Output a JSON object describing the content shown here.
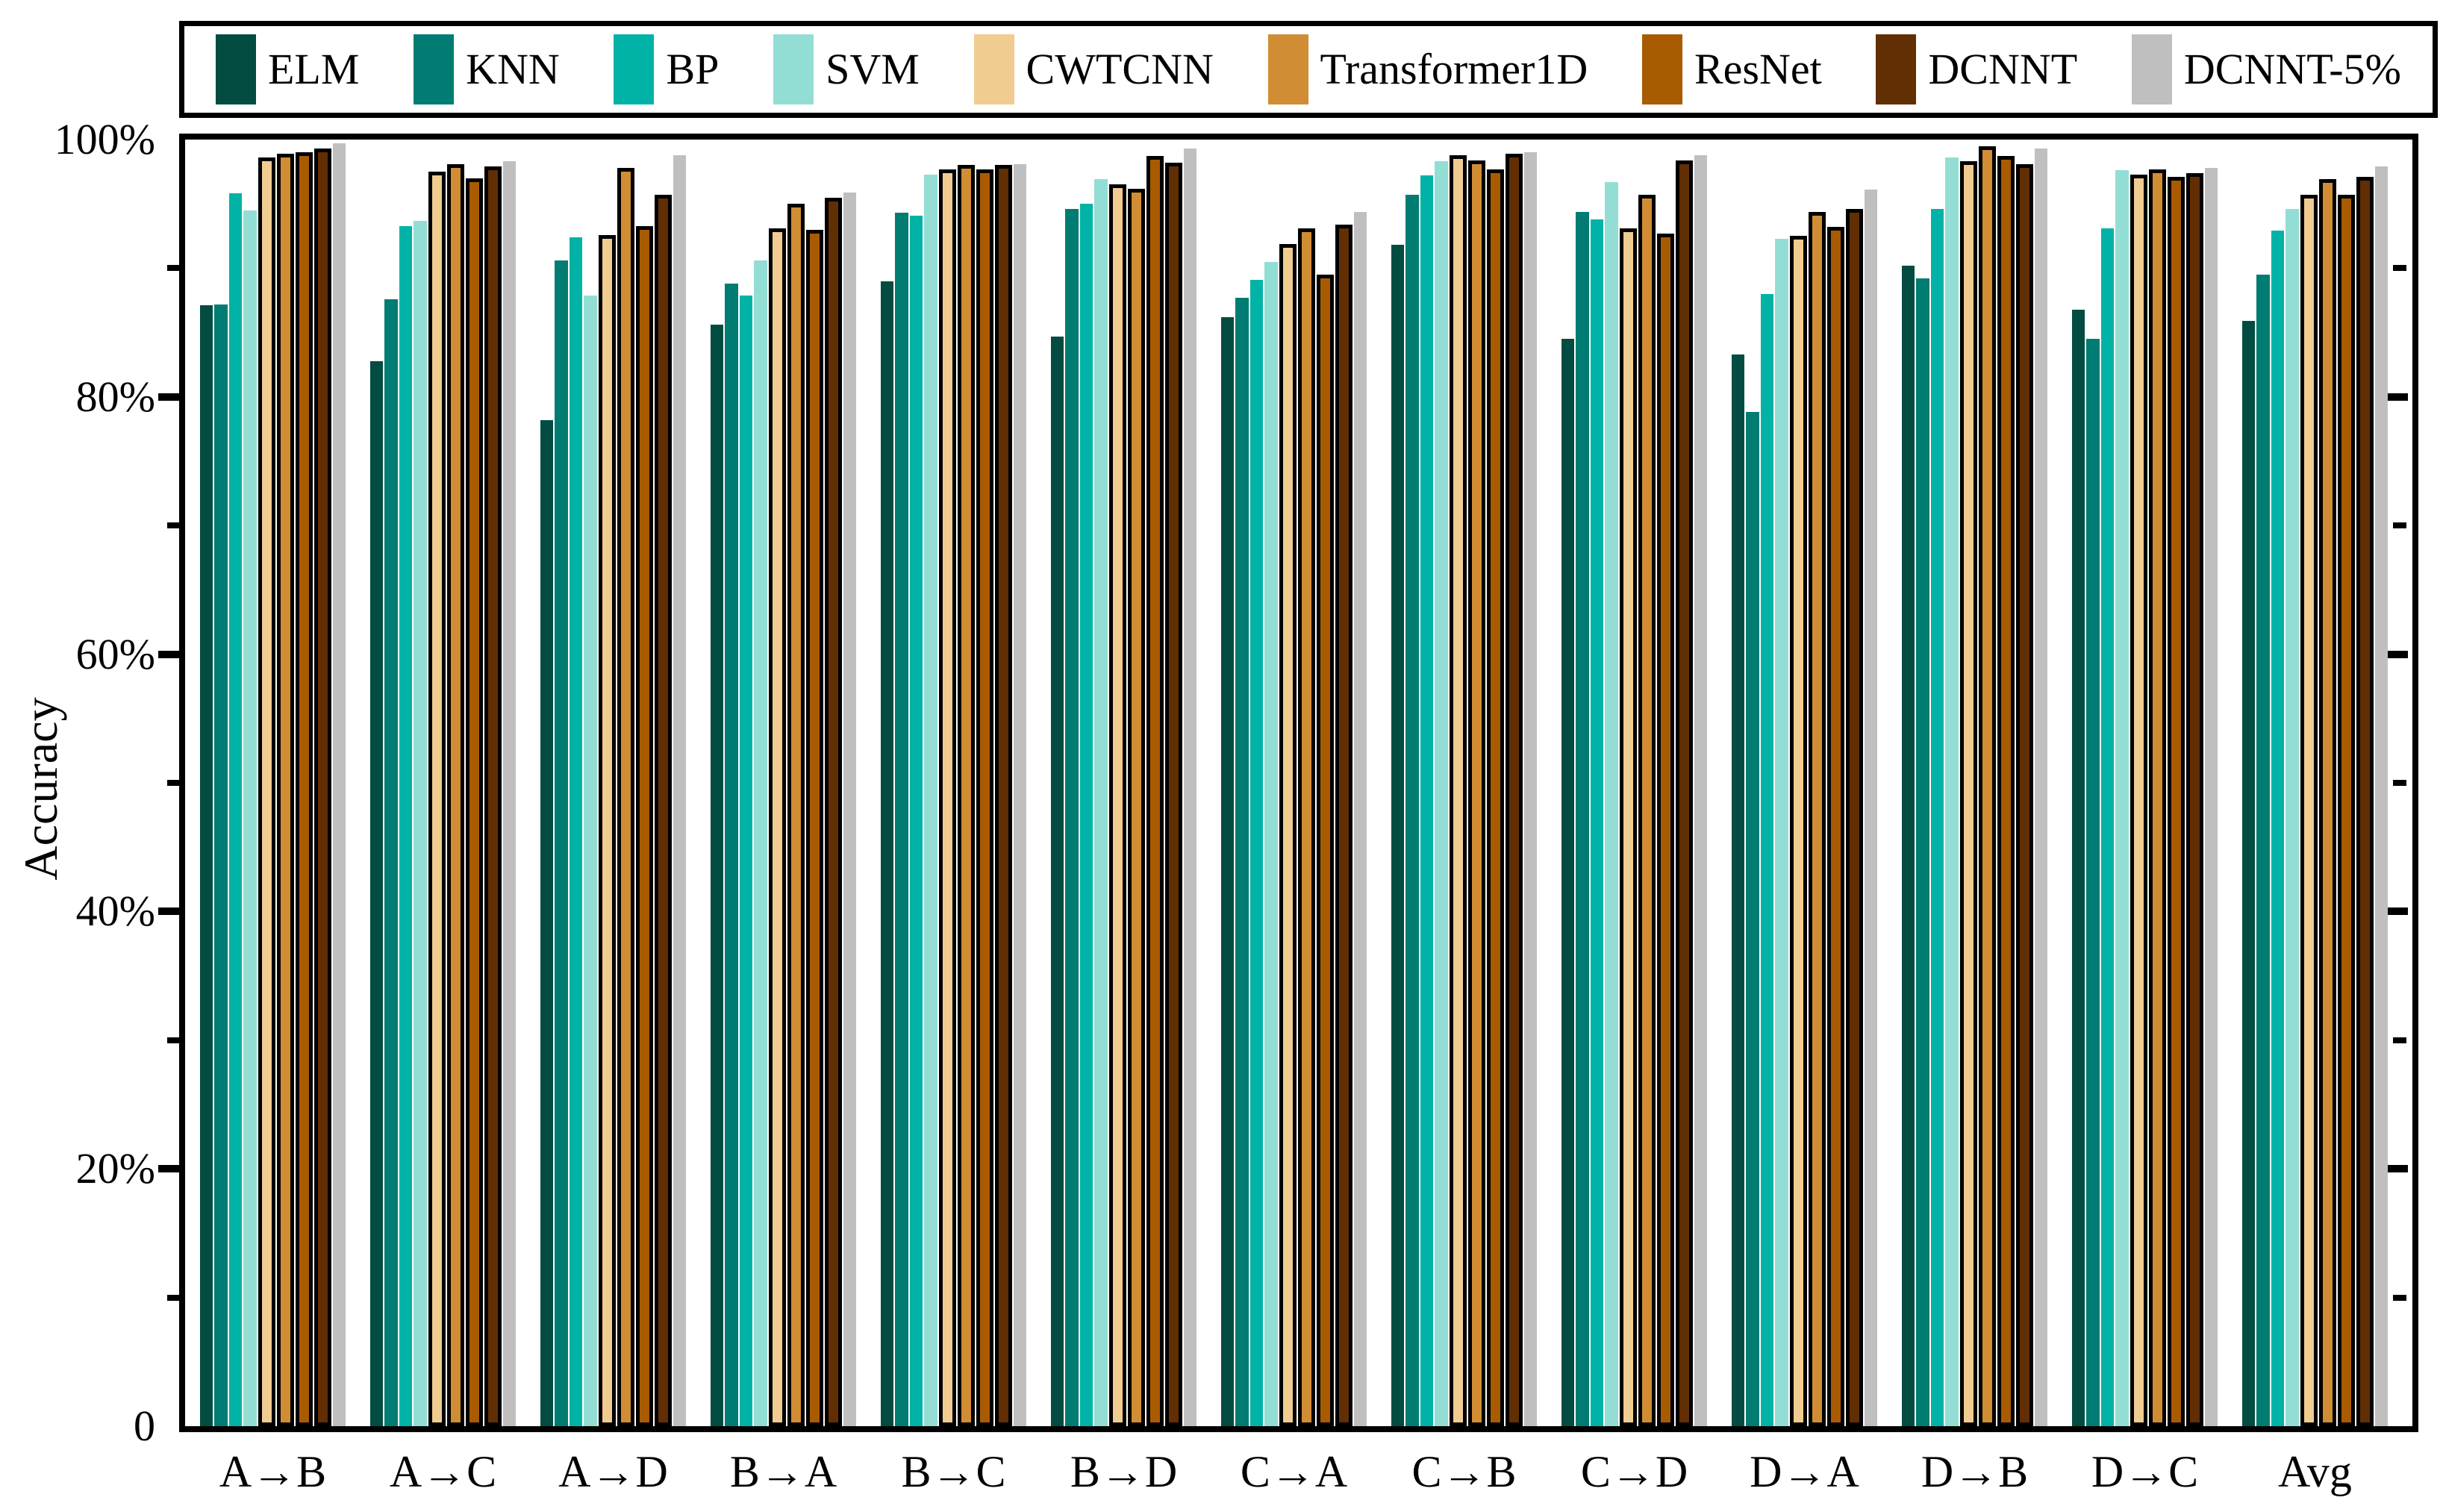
{
  "figure": {
    "ylabel": "Accuracy",
    "axis_color": "#000000",
    "background": "#ffffff"
  },
  "chart_data": {
    "type": "bar",
    "title": "",
    "xlabel": "",
    "ylabel": "Accuracy",
    "ylim": [
      0,
      100
    ],
    "y_major_ticks": [
      0,
      20,
      40,
      60,
      80,
      100
    ],
    "y_minor_ticks": [
      10,
      30,
      50,
      70,
      90
    ],
    "ytick_labels": [
      "0",
      "20%",
      "40%",
      "60%",
      "80%",
      "100%"
    ],
    "grid": false,
    "legend_position": "top",
    "bar_edge_color": "#000000",
    "categories": [
      "A→B",
      "A→C",
      "A→D",
      "B→A",
      "B→C",
      "B→D",
      "C→A",
      "C→B",
      "C→D",
      "D→A",
      "D→B",
      "D→C",
      "Avg"
    ],
    "series": [
      {
        "name": "ELM",
        "color": "#024C41",
        "edge": false,
        "values": [
          87.1,
          82.8,
          78.2,
          85.6,
          89.0,
          84.7,
          86.2,
          91.8,
          84.5,
          83.3,
          90.2,
          86.8,
          85.9
        ]
      },
      {
        "name": "KNN",
        "color": "#007C72",
        "edge": false,
        "values": [
          87.2,
          87.6,
          90.6,
          88.8,
          94.3,
          94.6,
          87.7,
          95.7,
          94.4,
          78.8,
          89.2,
          84.5,
          89.5
        ]
      },
      {
        "name": "BP",
        "color": "#00B3A6",
        "edge": false,
        "values": [
          95.8,
          93.3,
          92.4,
          87.9,
          94.1,
          95.0,
          89.1,
          97.2,
          93.8,
          88.0,
          94.6,
          93.1,
          92.9
        ]
      },
      {
        "name": "SVM",
        "color": "#93DED4",
        "edge": false,
        "values": [
          94.5,
          93.7,
          87.9,
          90.6,
          97.3,
          96.9,
          90.5,
          98.3,
          96.7,
          92.3,
          98.6,
          97.6,
          94.6
        ]
      },
      {
        "name": "CWTCNN",
        "color": "#F0CC90",
        "edge": true,
        "values": [
          98.6,
          97.5,
          92.6,
          93.1,
          97.7,
          96.5,
          91.9,
          98.8,
          93.1,
          92.5,
          98.3,
          97.3,
          95.7
        ]
      },
      {
        "name": "Transformer1D",
        "color": "#D18D33",
        "edge": true,
        "values": [
          98.9,
          98.1,
          97.8,
          95.0,
          98.0,
          96.2,
          93.1,
          98.4,
          95.7,
          94.4,
          99.5,
          97.7,
          96.9
        ]
      },
      {
        "name": "ResNet",
        "color": "#A95B02",
        "edge": true,
        "values": [
          99.0,
          97.0,
          93.3,
          93.0,
          97.7,
          98.7,
          89.5,
          97.7,
          92.7,
          93.2,
          98.7,
          97.1,
          95.7
        ]
      },
      {
        "name": "DCNNT",
        "color": "#622E03",
        "edge": true,
        "values": [
          99.3,
          97.9,
          95.7,
          95.5,
          98.0,
          98.2,
          93.4,
          98.9,
          98.4,
          94.6,
          98.1,
          97.4,
          97.1
        ]
      },
      {
        "name": "DCNNT-5%",
        "color": "#BFBFBF",
        "edge": false,
        "values": [
          99.7,
          98.3,
          98.8,
          95.9,
          98.1,
          99.3,
          94.4,
          99.0,
          98.8,
          96.1,
          99.3,
          97.8,
          97.9
        ]
      }
    ]
  }
}
